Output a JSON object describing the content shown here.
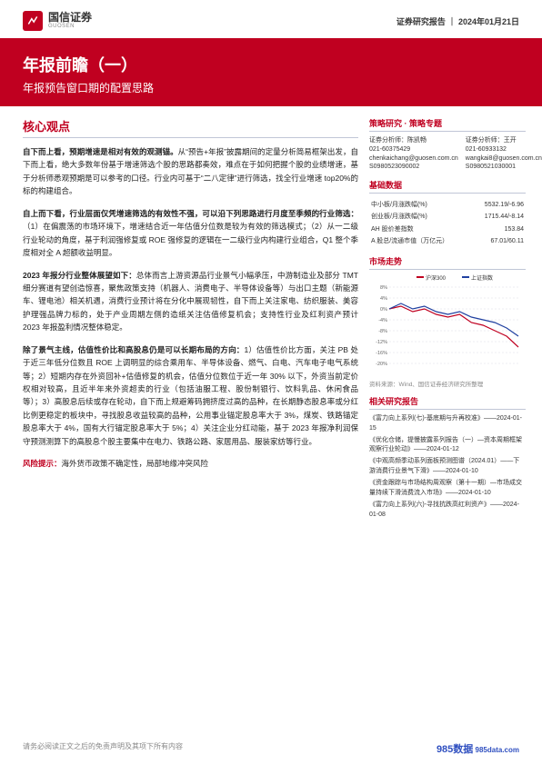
{
  "header": {
    "logo_cn": "国信证券",
    "logo_en": "GUOSEN",
    "report_type": "证券研究报告",
    "date": "2024年01月21日"
  },
  "title": {
    "main": "年报前瞻（一）",
    "sub": "年报预告窗口期的配置思路"
  },
  "main": {
    "heading": "核心观点",
    "paragraphs": [
      {
        "lead": "自下而上看，预期增速是相对有效的观测锚。",
        "body": "从“预告+年报”披露期间的定量分析简易框架出发，自下而上看，绝大多数年份基于增速筛选个股的思路都奏效，难点在于如何把握个股的业绩增速，基于分析师悉观预期是可以参考的口径。行业内可基于“二八定律”进行筛选，找全行业增速 top20%的标的构建组合。"
      },
      {
        "lead": "自上而下看，行业层面仅凭增速筛选的有效性不强，可以沿下列思路进行月度至季频的行业筛选：",
        "body": "（1）在偏震荡的市场环境下，增速结合近一年估值分位数是较为有效的筛选模式；（2）从一二级行业轮动的角度，基于利润强修复或 ROE 强修复的逻辑在一二级行业内构建行业组合，Q1 整个季度相对全 A 超额收益明显。"
      },
      {
        "lead": "2023 年报分行业整体展望如下：",
        "body": "总体而言上游资源品行业景气小幅承压，中游制造业及部分 TMT 细分赛道有望创造惊喜，聚焦政策支持（机器人、消费电子、半导体设备等）与出口主题（新能源车、锂电池）相关机遇，消费行业预计将在分化中展现韧性，自下而上关注家电、纺织服装、美容护理强品牌力标的，处于产业周期左侧的造纸关注估值修复机会；支持性行业及红利资产预计 2023 年报盈利情况整体稳定。"
      },
      {
        "lead": "除了景气主线，估值性价比和高股息仍是可以长期布局的方向：",
        "body": "1）估值性价比方面，关注 PB 处于近三年低分位数且 ROE 上调明显的综合乘用车、半导体设备、燃气、白电、汽车电子电气系统等；2）短期内存在外资回补+估值修复的机会，估值分位数位于近一年 30% 以下，外资当前定价权相对较高，且近半年来外资超卖的行业（包括油服工程、股份制银行、饮料乳品、休闲食品等）；3）高股息后续或存在轮动，自下而上规避筹码拥挤度过高的品种，在长期静态股息率或分红比例更稳定的板块中，寻找股息收益较高的品种，公用事业锚定股息率大于 3%，煤炭、铁路锚定股息率大于 4%，国有大行锚定股息率大于 5%；4）关注企业分红动能，基于 2023 年报净利润保守预测测算下的高股息个股主要集中在电力、铁路公路、家居用品、服装家纺等行业。"
      }
    ],
    "risk_label": "风险提示：",
    "risk_text": "海外货币政策不确定性，局部地缘冲突风险"
  },
  "sidebar": {
    "category": "策略研究 · 策略专题",
    "analysts": [
      {
        "label": "证券分析师：",
        "name": "陈凯畅",
        "phone": "021-60375429",
        "email": "chenkaichang@guosen.com.cn",
        "cert": "S0980523090002"
      },
      {
        "label": "证券分析师：",
        "name": "王开",
        "phone": "021-60933132",
        "email": "wangkai8@guosen.com.cn",
        "cert": "S0980521030001"
      }
    ],
    "base_heading": "基础数据",
    "base_data": [
      {
        "k": "中小板/月涨跌幅(%)",
        "v": "5532.19/-6.96"
      },
      {
        "k": "创业板/月涨跌幅(%)",
        "v": "1715.44/-8.14"
      },
      {
        "k": "AH 股价差指数",
        "v": "153.84"
      },
      {
        "k": "A 股总/流通市值（万亿元）",
        "v": "67.01/60.11"
      }
    ],
    "trend_heading": "市场走势",
    "chart": {
      "legend": [
        "沪深300",
        "上证指数"
      ],
      "legend_colors": [
        "#c00020",
        "#2040a0"
      ],
      "x_labels": [
        "1",
        "2",
        "3",
        "4",
        "5",
        "6",
        "7",
        "8",
        "9",
        "10",
        "11",
        "12"
      ],
      "y_ticks": [
        "8%",
        "4%",
        "0%",
        "-4%",
        "-8%",
        "-12%",
        "-16%",
        "-20%"
      ],
      "series1": [
        0,
        1,
        -1,
        0,
        -2,
        -3,
        -2,
        -5,
        -6,
        -8,
        -10,
        -14
      ],
      "series2": [
        0,
        2,
        0,
        1,
        -1,
        -2,
        -1,
        -3,
        -4,
        -5,
        -7,
        -10
      ],
      "colors": {
        "s1": "#c00020",
        "s2": "#2040a0",
        "grid": "#dcdce6",
        "bg": "#ffffff",
        "axis_text": "#666666"
      },
      "caption": "资料来源：Wind、国信证券经济研究所整理"
    },
    "reports_heading": "相关研究报告",
    "reports": [
      "《富力向上系列(七)-基底期与升再校准》——2024-01-15",
      "《优化仓储，提慢披露系列报告（一）—资本周期框架观察行业轮动》——2024-01-12",
      "《中观高频季动系列面板预测图谱（2024.01）——下游消费行业景气下滑》——2024-01-10",
      "《资金跟踪与市场结构周观察（第十一期）—市场成交量持续下滑消费流入市场》——2024-01-10",
      "《富力向上系列(六)-寻找抗跌高红利资产》——2024-01-08"
    ]
  },
  "footer": {
    "disclaimer": "请务必阅读正文之后的免责声明及其项下所有内容",
    "watermark": "985数据",
    "wm_sub": "985data.com"
  }
}
